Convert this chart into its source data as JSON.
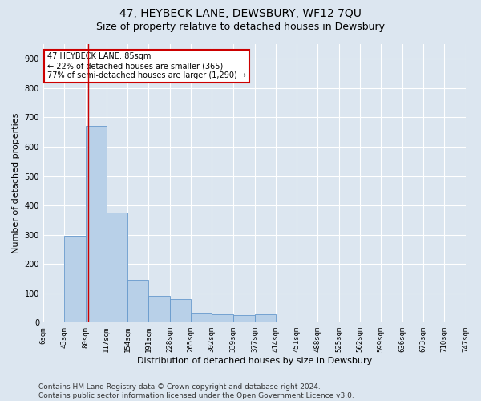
{
  "title": "47, HEYBECK LANE, DEWSBURY, WF12 7QU",
  "subtitle": "Size of property relative to detached houses in Dewsbury",
  "xlabel": "Distribution of detached houses by size in Dewsbury",
  "ylabel": "Number of detached properties",
  "property_size": 85,
  "bin_edges": [
    6,
    43,
    80,
    117,
    154,
    191,
    228,
    265,
    302,
    339,
    377,
    414,
    451,
    488,
    525,
    562,
    599,
    636,
    673,
    710,
    747
  ],
  "bar_heights": [
    5,
    295,
    672,
    375,
    147,
    90,
    80,
    35,
    28,
    25,
    27,
    5,
    0,
    0,
    0,
    0,
    0,
    0,
    0,
    0
  ],
  "bar_color": "#b8d0e8",
  "bar_edge_color": "#6699cc",
  "vline_color": "#cc0000",
  "vline_x": 85,
  "annotation_text": "47 HEYBECK LANE: 85sqm\n← 22% of detached houses are smaller (365)\n77% of semi-detached houses are larger (1,290) →",
  "annotation_box_color": "#ffffff",
  "annotation_box_edge_color": "#cc0000",
  "ylim": [
    0,
    950
  ],
  "yticks": [
    0,
    100,
    200,
    300,
    400,
    500,
    600,
    700,
    800,
    900
  ],
  "footnote": "Contains HM Land Registry data © Crown copyright and database right 2024.\nContains public sector information licensed under the Open Government Licence v3.0.",
  "background_color": "#dce6f0",
  "plot_background_color": "#dce6f0",
  "grid_color": "#ffffff",
  "title_fontsize": 10,
  "subtitle_fontsize": 9,
  "ylabel_fontsize": 8,
  "xlabel_fontsize": 8,
  "footnote_fontsize": 6.5,
  "tick_fontsize": 6.5,
  "ytick_fontsize": 7
}
